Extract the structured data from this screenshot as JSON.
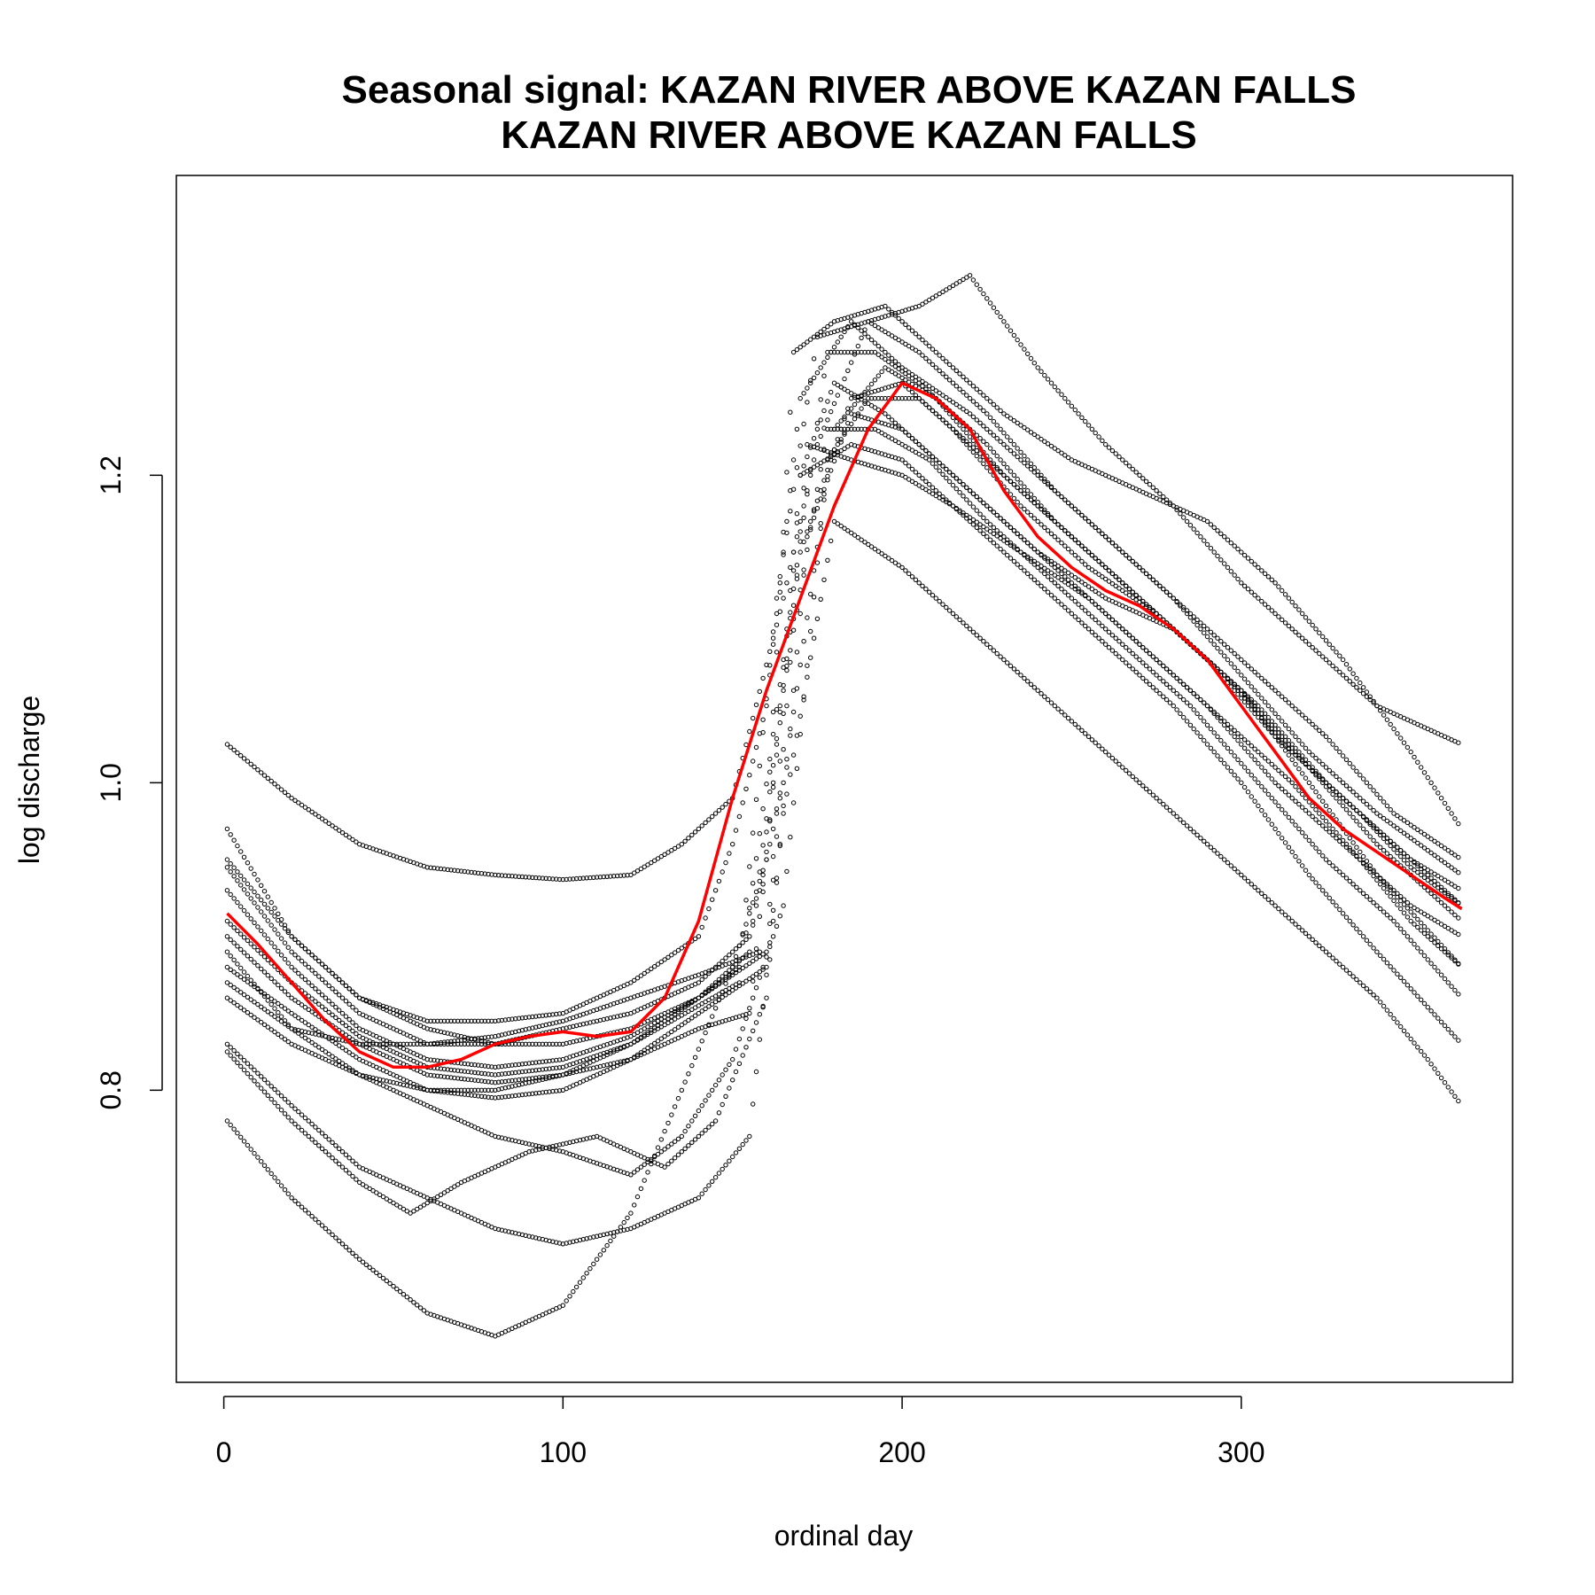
{
  "chart_data": {
    "type": "scatter",
    "title": "Seasonal signal: KAZAN RIVER ABOVE KAZAN FALLS",
    "subtitle": "KAZAN RIVER ABOVE KAZAN FALLS",
    "xlabel": "ordinal day",
    "ylabel": "log discharge",
    "xlim": [
      -14,
      380
    ],
    "ylim": [
      0.61,
      1.395
    ],
    "xticks": [
      0,
      100,
      200,
      300
    ],
    "xtick_labels": [
      "0",
      "100",
      "200",
      "300"
    ],
    "yticks": [
      0.8,
      1.0,
      1.2
    ],
    "ytick_labels": [
      "0.8",
      "1.0",
      "1.2"
    ],
    "grid": false,
    "legend": "none",
    "colors": {
      "observations": "#000000",
      "seasonal_fit": "#ff0000"
    },
    "series": [
      {
        "style": "points",
        "x": [
          1,
          20,
          40,
          60,
          80,
          100,
          120,
          135,
          150,
          165,
          175,
          190,
          205,
          220,
          240,
          260,
          280,
          300,
          320,
          340,
          365
        ],
        "y": [
          1.025,
          0.99,
          0.96,
          0.945,
          0.94,
          0.937,
          0.94,
          0.96,
          0.99,
          1.12,
          1.22,
          1.3,
          1.31,
          1.33,
          1.27,
          1.22,
          1.18,
          1.13,
          1.09,
          1.05,
          1.025
        ]
      },
      {
        "style": "points",
        "x": [
          1,
          20,
          40,
          60,
          80,
          100,
          120,
          140,
          150,
          160,
          170,
          185,
          200,
          220,
          240,
          260,
          280,
          300,
          320,
          340,
          365
        ],
        "y": [
          0.97,
          0.9,
          0.86,
          0.845,
          0.845,
          0.85,
          0.87,
          0.9,
          0.96,
          1.05,
          1.25,
          1.3,
          1.27,
          1.24,
          1.2,
          1.16,
          1.12,
          1.07,
          1.02,
          0.98,
          0.94
        ]
      },
      {
        "style": "points",
        "x": [
          1,
          20,
          40,
          60,
          80,
          100,
          120,
          140,
          155,
          165,
          180,
          195,
          210,
          230,
          250,
          270,
          290,
          310,
          330,
          350,
          365
        ],
        "y": [
          0.945,
          0.89,
          0.85,
          0.83,
          0.83,
          0.84,
          0.85,
          0.87,
          0.9,
          1.0,
          1.23,
          1.27,
          1.25,
          1.2,
          1.16,
          1.12,
          1.08,
          1.03,
          0.99,
          0.95,
          0.93
        ]
      },
      {
        "style": "points",
        "x": [
          1,
          20,
          40,
          60,
          80,
          100,
          120,
          140,
          155,
          170,
          185,
          200,
          215,
          235,
          255,
          275,
          295,
          315,
          335,
          350,
          365
        ],
        "y": [
          0.93,
          0.88,
          0.84,
          0.82,
          0.815,
          0.82,
          0.835,
          0.86,
          0.89,
          1.15,
          1.25,
          1.26,
          1.23,
          1.18,
          1.14,
          1.11,
          1.07,
          1.02,
          0.98,
          0.945,
          0.92
        ]
      },
      {
        "style": "points",
        "x": [
          1,
          20,
          40,
          60,
          80,
          100,
          120,
          140,
          160,
          170,
          180,
          195,
          210,
          230,
          250,
          270,
          290,
          310,
          330,
          350,
          365
        ],
        "y": [
          0.9,
          0.86,
          0.83,
          0.81,
          0.805,
          0.81,
          0.83,
          0.86,
          0.89,
          1.2,
          1.26,
          1.24,
          1.21,
          1.17,
          1.13,
          1.09,
          1.05,
          1.0,
          0.96,
          0.92,
          0.9
        ]
      },
      {
        "style": "points",
        "x": [
          1,
          20,
          40,
          60,
          80,
          100,
          120,
          140,
          160,
          172,
          185,
          200,
          215,
          235,
          255,
          275,
          295,
          315,
          335,
          350,
          365
        ],
        "y": [
          0.88,
          0.85,
          0.82,
          0.8,
          0.795,
          0.8,
          0.82,
          0.85,
          0.88,
          1.22,
          1.21,
          1.2,
          1.18,
          1.15,
          1.12,
          1.08,
          1.04,
          1.0,
          0.95,
          0.91,
          0.88
        ]
      },
      {
        "style": "points",
        "x": [
          1,
          20,
          40,
          60,
          80,
          100,
          120,
          140,
          158,
          168,
          180,
          195,
          210,
          230,
          250,
          270,
          290,
          310,
          330,
          350,
          365
        ],
        "y": [
          0.87,
          0.84,
          0.83,
          0.83,
          0.835,
          0.845,
          0.86,
          0.875,
          0.89,
          1.28,
          1.3,
          1.31,
          1.28,
          1.24,
          1.21,
          1.19,
          1.17,
          1.13,
          1.08,
          1.02,
          0.97
        ]
      },
      {
        "style": "points",
        "x": [
          1,
          20,
          40,
          60,
          80,
          100,
          120,
          140,
          155,
          165,
          180,
          200,
          220,
          240,
          260,
          280,
          300,
          320,
          340,
          355,
          365
        ],
        "y": [
          0.83,
          0.79,
          0.75,
          0.73,
          0.71,
          0.7,
          0.71,
          0.73,
          0.77,
          0.98,
          1.17,
          1.14,
          1.1,
          1.06,
          1.02,
          0.98,
          0.94,
          0.9,
          0.86,
          0.82,
          0.79
        ]
      },
      {
        "style": "points",
        "x": [
          1,
          20,
          40,
          60,
          80,
          100,
          120,
          135,
          150,
          160,
          170,
          185,
          200,
          220,
          240,
          260,
          280,
          300,
          320,
          340,
          365
        ],
        "y": [
          0.78,
          0.73,
          0.69,
          0.655,
          0.64,
          0.66,
          0.72,
          0.8,
          0.88,
          0.95,
          1.2,
          1.22,
          1.21,
          1.17,
          1.13,
          1.09,
          1.05,
          1.0,
          0.94,
          0.89,
          0.83
        ]
      },
      {
        "style": "points",
        "x": [
          1,
          20,
          40,
          55,
          70,
          90,
          110,
          130,
          145,
          160,
          172,
          185,
          200,
          220,
          240,
          260,
          280,
          300,
          320,
          340,
          365
        ],
        "y": [
          0.825,
          0.78,
          0.74,
          0.72,
          0.74,
          0.76,
          0.77,
          0.75,
          0.78,
          0.86,
          1.16,
          1.24,
          1.23,
          1.19,
          1.15,
          1.12,
          1.1,
          1.06,
          1.0,
          0.94,
          0.88
        ]
      },
      {
        "style": "points",
        "x": [
          1,
          20,
          40,
          60,
          80,
          100,
          120,
          135,
          150,
          165,
          178,
          190,
          205,
          220,
          240,
          260,
          280,
          300,
          320,
          340,
          365
        ],
        "y": [
          0.89,
          0.84,
          0.81,
          0.79,
          0.77,
          0.76,
          0.745,
          0.77,
          0.82,
          0.92,
          1.21,
          1.25,
          1.25,
          1.22,
          1.18,
          1.14,
          1.1,
          1.06,
          1.01,
          0.96,
          0.91
        ]
      },
      {
        "style": "points",
        "x": [
          1,
          20,
          40,
          60,
          80,
          100,
          120,
          140,
          155,
          165,
          178,
          192,
          208,
          225,
          245,
          265,
          285,
          305,
          325,
          345,
          365
        ],
        "y": [
          0.86,
          0.83,
          0.81,
          0.8,
          0.8,
          0.81,
          0.82,
          0.84,
          0.85,
          1.06,
          1.23,
          1.23,
          1.21,
          1.17,
          1.13,
          1.09,
          1.05,
          1.0,
          0.95,
          0.91,
          0.86
        ]
      },
      {
        "style": "points",
        "x": [
          1,
          20,
          40,
          60,
          80,
          100,
          120,
          140,
          152,
          165,
          178,
          192,
          205,
          225,
          245,
          265,
          285,
          305,
          325,
          345,
          365
        ],
        "y": [
          0.91,
          0.87,
          0.835,
          0.815,
          0.81,
          0.815,
          0.83,
          0.855,
          0.87,
          1.08,
          1.28,
          1.28,
          1.26,
          1.22,
          1.17,
          1.13,
          1.09,
          1.05,
          1.0,
          0.96,
          0.92
        ]
      },
      {
        "style": "points",
        "x": [
          1,
          20,
          40,
          60,
          80,
          100,
          120,
          140,
          152,
          163,
          175,
          190,
          205,
          225,
          245,
          265,
          285,
          305,
          325,
          345,
          365
        ],
        "y": [
          0.95,
          0.9,
          0.86,
          0.84,
          0.83,
          0.83,
          0.84,
          0.86,
          0.88,
          1.12,
          1.29,
          1.3,
          1.28,
          1.24,
          1.19,
          1.15,
          1.11,
          1.07,
          1.03,
          0.98,
          0.95
        ]
      }
    ],
    "seasonal_fit": {
      "style": "line",
      "x": [
        1,
        10,
        20,
        30,
        40,
        50,
        60,
        70,
        80,
        90,
        100,
        110,
        120,
        130,
        140,
        150,
        160,
        170,
        180,
        190,
        200,
        210,
        220,
        230,
        240,
        250,
        260,
        270,
        280,
        290,
        300,
        310,
        320,
        330,
        340,
        350,
        360,
        365
      ],
      "y": [
        0.915,
        0.895,
        0.87,
        0.845,
        0.825,
        0.815,
        0.815,
        0.82,
        0.83,
        0.835,
        0.838,
        0.835,
        0.838,
        0.86,
        0.91,
        0.99,
        1.06,
        1.12,
        1.18,
        1.23,
        1.26,
        1.25,
        1.23,
        1.19,
        1.16,
        1.14,
        1.125,
        1.115,
        1.1,
        1.08,
        1.05,
        1.02,
        0.99,
        0.97,
        0.955,
        0.94,
        0.925,
        0.918
      ]
    }
  }
}
